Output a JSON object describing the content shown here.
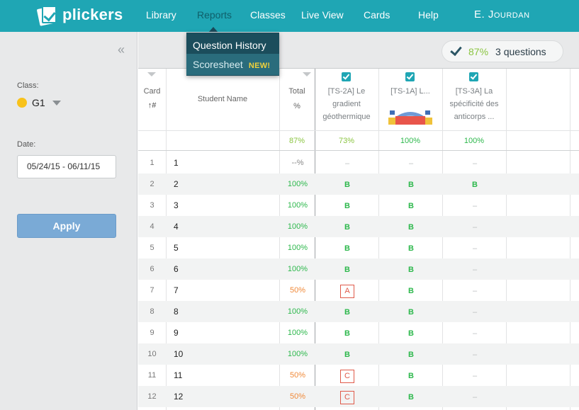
{
  "nav": {
    "brand": "plickers",
    "items": [
      "Library",
      "Reports",
      "Classes",
      "Live View",
      "Cards",
      "Help"
    ],
    "user": "E. Jourdan"
  },
  "dropdown": {
    "item1": "Question History",
    "item2": "Scoresheet",
    "badge": "NEW!"
  },
  "sidebar": {
    "class_label": "Class:",
    "class_name": "G1",
    "class_color": "#f8c21b",
    "date_label": "Date:",
    "date_value": "05/24/15 - 06/11/15",
    "apply_label": "Apply"
  },
  "summary": {
    "percent": "87%",
    "questions": "3 questions"
  },
  "table": {
    "headers": {
      "card": "Card",
      "card_sort": "↑#",
      "student": "Student Name",
      "total": "Total",
      "total_unit": "%"
    },
    "questions": [
      {
        "line1": "[TS-2A] Le",
        "line2": "gradient",
        "line3": "géothermique"
      },
      {
        "line1": "[TS-1A] L...",
        "line2": "",
        "line3": ""
      },
      {
        "line1": "[TS-3A] La",
        "line2": "spécificité des",
        "line3": "anticorps ..."
      }
    ],
    "averages": {
      "total": "87%",
      "q1": "73%",
      "q2": "100%",
      "q3": "100%"
    },
    "rows": [
      {
        "card": "1",
        "name": "1",
        "total": "--%",
        "total_status": "none",
        "q1": "–",
        "q2": "–",
        "q3": "–"
      },
      {
        "card": "2",
        "name": "2",
        "total": "100%",
        "total_status": "good",
        "q1": "B",
        "q2": "B",
        "q3": "B"
      },
      {
        "card": "3",
        "name": "3",
        "total": "100%",
        "total_status": "good",
        "q1": "B",
        "q2": "B",
        "q3": "–"
      },
      {
        "card": "4",
        "name": "4",
        "total": "100%",
        "total_status": "good",
        "q1": "B",
        "q2": "B",
        "q3": "–"
      },
      {
        "card": "5",
        "name": "5",
        "total": "100%",
        "total_status": "good",
        "q1": "B",
        "q2": "B",
        "q3": "–"
      },
      {
        "card": "6",
        "name": "6",
        "total": "100%",
        "total_status": "good",
        "q1": "B",
        "q2": "B",
        "q3": "–"
      },
      {
        "card": "7",
        "name": "7",
        "total": "50%",
        "total_status": "low",
        "q1": "A",
        "q2": "B",
        "q3": "–"
      },
      {
        "card": "8",
        "name": "8",
        "total": "100%",
        "total_status": "good",
        "q1": "B",
        "q2": "B",
        "q3": "–"
      },
      {
        "card": "9",
        "name": "9",
        "total": "100%",
        "total_status": "good",
        "q1": "B",
        "q2": "B",
        "q3": "–"
      },
      {
        "card": "10",
        "name": "10",
        "total": "100%",
        "total_status": "good",
        "q1": "B",
        "q2": "B",
        "q3": "–"
      },
      {
        "card": "11",
        "name": "11",
        "total": "50%",
        "total_status": "low",
        "q1": "C",
        "q2": "B",
        "q3": "–"
      },
      {
        "card": "12",
        "name": "12",
        "total": "50%",
        "total_status": "low",
        "q1": "C",
        "q2": "B",
        "q3": "–"
      }
    ]
  },
  "colors": {
    "brand": "#1fa6b4",
    "correct": "#2db84c",
    "low_score": "#f08a3a",
    "wrong": "#e05a4a",
    "apply": "#7aaad6"
  }
}
